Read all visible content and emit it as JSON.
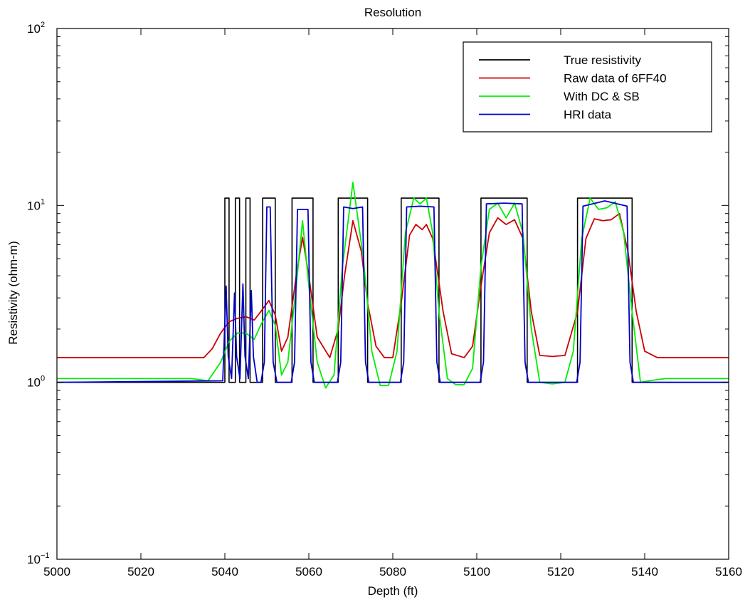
{
  "chart_data": {
    "type": "line",
    "title": "Resolution",
    "xlabel": "Depth (ft)",
    "ylabel": "Resistivity (ohm-m)",
    "xlim": [
      5000,
      5160
    ],
    "ylim": [
      0.1,
      100
    ],
    "yscale": "log",
    "xticks": [
      5000,
      5020,
      5040,
      5060,
      5080,
      5100,
      5120,
      5140,
      5160
    ],
    "xtick_labels": [
      "5000",
      "5020",
      "5040",
      "5060",
      "5080",
      "5100",
      "5120",
      "5140",
      "5160"
    ],
    "yticks": [
      {
        "base": "10",
        "exp": "−1",
        "value": 0.1
      },
      {
        "base": "10",
        "exp": "0",
        "value": 1
      },
      {
        "base": "10",
        "exp": "1",
        "value": 10
      },
      {
        "base": "10",
        "exp": "2",
        "value": 100
      }
    ],
    "grid": false,
    "legend_position": "top-right",
    "series": [
      {
        "name": "True resistivity",
        "color": "#000000",
        "x": [
          5000,
          5040,
          5040,
          5041,
          5041,
          5042.5,
          5042.5,
          5043.5,
          5043.5,
          5045,
          5045,
          5046,
          5046,
          5047.5,
          5047.5,
          5049,
          5049,
          5052,
          5052,
          5056,
          5056,
          5061,
          5061,
          5067,
          5067,
          5074,
          5074,
          5082,
          5082,
          5091,
          5091,
          5101,
          5101,
          5112,
          5112,
          5124,
          5124,
          5137,
          5137,
          5160
        ],
        "y": [
          1,
          1,
          11,
          11,
          1,
          1,
          11,
          11,
          1,
          1,
          11,
          11,
          1,
          1,
          1,
          1,
          11,
          11,
          1,
          1,
          11,
          11,
          1,
          1,
          11,
          11,
          1,
          1,
          11,
          11,
          1,
          1,
          11,
          11,
          1,
          1,
          11,
          11,
          1,
          1
        ]
      },
      {
        "name": "Raw data of 6FF40",
        "color": "#cc0000",
        "x": [
          5000,
          5035,
          5037,
          5039,
          5041,
          5043,
          5045,
          5047,
          5048.5,
          5050.5,
          5052,
          5053.5,
          5055,
          5057,
          5058.5,
          5060,
          5062,
          5065,
          5067,
          5068.5,
          5070.5,
          5072.5,
          5074,
          5076,
          5078,
          5080,
          5082,
          5084,
          5085.5,
          5087,
          5088,
          5089.5,
          5092,
          5094,
          5097,
          5099,
          5101,
          5103,
          5105,
          5107,
          5109,
          5111,
          5113,
          5115,
          5118,
          5121,
          5124,
          5126,
          5128,
          5130,
          5132,
          5134,
          5136,
          5138,
          5140,
          5143,
          5160
        ],
        "y": [
          1.38,
          1.38,
          1.55,
          1.9,
          2.2,
          2.3,
          2.35,
          2.25,
          2.5,
          2.9,
          2.4,
          1.5,
          1.8,
          4.0,
          6.6,
          4.0,
          1.8,
          1.38,
          2.0,
          4.0,
          8.2,
          5.5,
          2.8,
          1.6,
          1.38,
          1.38,
          2.8,
          6.8,
          7.8,
          7.3,
          7.8,
          6.5,
          2.5,
          1.45,
          1.38,
          1.6,
          3.5,
          7.0,
          8.5,
          7.8,
          8.3,
          6.5,
          2.5,
          1.42,
          1.4,
          1.42,
          2.5,
          6.5,
          8.4,
          8.2,
          8.3,
          9.0,
          5.5,
          2.5,
          1.5,
          1.38,
          1.38
        ]
      },
      {
        "name": "With DC & SB",
        "color": "#00ee00",
        "x": [
          5000,
          5032,
          5036,
          5039,
          5041,
          5043,
          5045,
          5047,
          5048.5,
          5050.5,
          5052,
          5053.5,
          5055,
          5057,
          5058.5,
          5060,
          5062,
          5064,
          5066,
          5068,
          5070.5,
          5073,
          5075,
          5077,
          5079,
          5081,
          5083,
          5085,
          5086.5,
          5088,
          5089.5,
          5091,
          5093,
          5095,
          5097,
          5099,
          5101,
          5103,
          5105,
          5107,
          5109,
          5111,
          5113,
          5115,
          5118,
          5121,
          5123,
          5125,
          5127,
          5129,
          5131,
          5133,
          5135,
          5137,
          5139,
          5141,
          5145,
          5160
        ],
        "y": [
          1.05,
          1.05,
          1.02,
          1.3,
          1.7,
          1.9,
          1.9,
          1.75,
          2.1,
          2.55,
          2.1,
          1.1,
          1.3,
          3.5,
          8.2,
          3.5,
          1.3,
          0.93,
          1.1,
          4.5,
          13.5,
          5.0,
          1.5,
          0.96,
          0.96,
          1.5,
          7.0,
          11.0,
          10.2,
          11.0,
          7.0,
          2.5,
          1.05,
          0.97,
          0.97,
          1.2,
          4.5,
          9.5,
          10.3,
          8.5,
          10.3,
          7.0,
          2.0,
          1.0,
          0.98,
          1.0,
          1.5,
          6.5,
          11.0,
          9.5,
          9.7,
          10.5,
          7.0,
          2.5,
          1.0,
          1.02,
          1.05,
          1.05
        ]
      },
      {
        "name": "HRI data",
        "color": "#0000cc",
        "x": [
          5000,
          5039.5,
          5040.3,
          5040.8,
          5041.6,
          5042.3,
          5042.8,
          5043.6,
          5044.3,
          5044.8,
          5045.6,
          5046.3,
          5046.8,
          5047.7,
          5048.6,
          5049.4,
          5050,
          5050.8,
          5051.5,
          5052.4,
          5055.8,
          5056.6,
          5057.3,
          5058.5,
          5059.8,
          5060.5,
          5061.3,
          5066.8,
          5067.6,
          5068.3,
          5070.5,
          5072.8,
          5073.5,
          5074.3,
          5081.8,
          5082.6,
          5083.3,
          5086.5,
          5089.8,
          5090.5,
          5091.3,
          5100.8,
          5101.6,
          5102.3,
          5106.5,
          5110.8,
          5111.5,
          5112.3,
          5123.8,
          5124.6,
          5125.3,
          5130.5,
          5135.8,
          5136.5,
          5137.3,
          5160
        ],
        "y": [
          1,
          1.02,
          3.5,
          1.4,
          1.05,
          3.2,
          1.4,
          1.05,
          3.6,
          1.4,
          1.05,
          3.3,
          1.4,
          1.0,
          1.0,
          1.3,
          9.8,
          9.8,
          1.3,
          1.0,
          1.0,
          1.3,
          9.5,
          9.5,
          9.5,
          1.3,
          1.0,
          1.0,
          1.3,
          9.8,
          9.6,
          9.8,
          1.3,
          1.0,
          1.0,
          1.3,
          9.8,
          9.9,
          9.8,
          1.3,
          1.0,
          1.0,
          1.3,
          10.2,
          10.3,
          10.2,
          1.3,
          1.0,
          1.0,
          1.3,
          9.9,
          10.6,
          9.9,
          1.3,
          1.0,
          1.0
        ]
      }
    ]
  }
}
